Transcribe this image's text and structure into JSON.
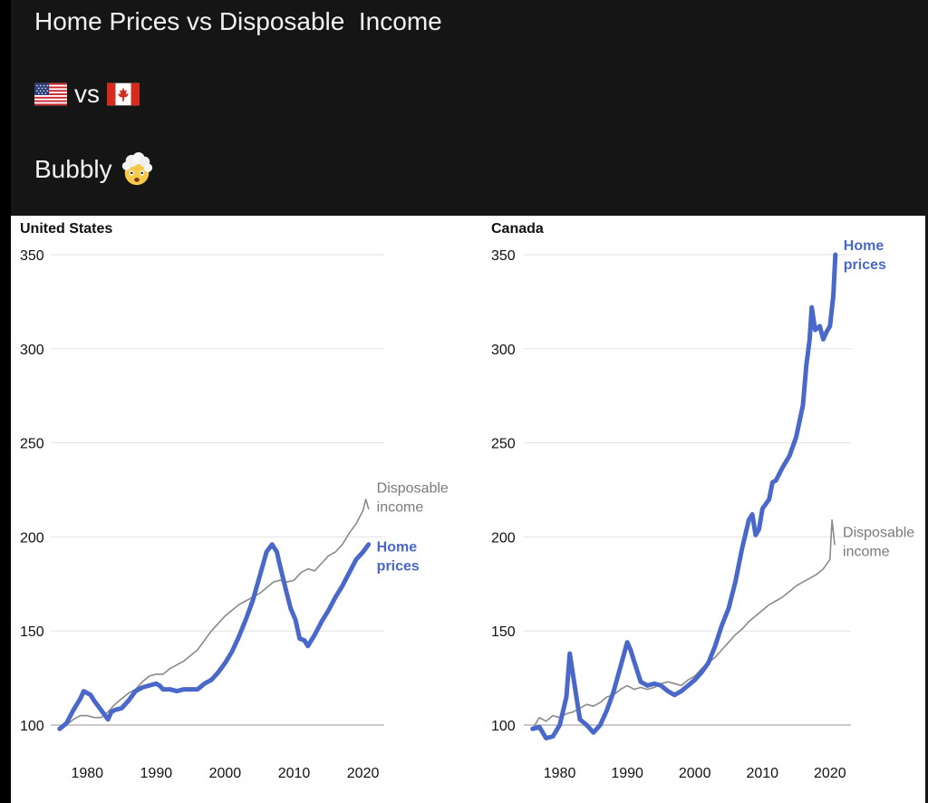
{
  "header": {
    "title": "Home Prices vs Disposable  Income",
    "versus": "vs",
    "caption": "Bubbly"
  },
  "icons": {
    "us_flag": "us-flag-icon",
    "canada_flag": "canada-flag-icon",
    "face": "exploding-head-face-icon"
  },
  "colors": {
    "home_prices": "#4a68c9",
    "disposable_income": "#8a8a8a",
    "header_bg": "#151515",
    "gridline": "#e2e2e2"
  },
  "chart_data": [
    {
      "type": "line",
      "title": "United States",
      "xlabel": "",
      "ylabel": "",
      "xlim": [
        1975.5,
        2021.5
      ],
      "ylim": [
        100,
        350
      ],
      "yticks": [
        100,
        150,
        200,
        250,
        300,
        350
      ],
      "xticks": [
        1980,
        1990,
        2000,
        2010,
        2020
      ],
      "grid": true,
      "series": [
        {
          "name": "Home\nprices",
          "color": "#4a68c9",
          "points": [
            [
              1976,
              98
            ],
            [
              1977,
              101
            ],
            [
              1978,
              108
            ],
            [
              1979,
              114
            ],
            [
              1979.5,
              118
            ],
            [
              1980.5,
              116
            ],
            [
              1981,
              113
            ],
            [
              1982,
              108
            ],
            [
              1983,
              103
            ],
            [
              1983.5,
              107
            ],
            [
              1984,
              108
            ],
            [
              1985,
              109
            ],
            [
              1986,
              113
            ],
            [
              1987,
              118
            ],
            [
              1988,
              120
            ],
            [
              1989,
              121
            ],
            [
              1990,
              122
            ],
            [
              1990.5,
              121
            ],
            [
              1991,
              119
            ],
            [
              1992,
              119
            ],
            [
              1993,
              118
            ],
            [
              1994,
              119
            ],
            [
              1995,
              119
            ],
            [
              1996,
              119
            ],
            [
              1997,
              122
            ],
            [
              1998,
              124
            ],
            [
              1999,
              128
            ],
            [
              2000,
              133
            ],
            [
              2001,
              139
            ],
            [
              2002,
              147
            ],
            [
              2003,
              156
            ],
            [
              2004,
              166
            ],
            [
              2005,
              179
            ],
            [
              2006,
              192
            ],
            [
              2006.8,
              196
            ],
            [
              2007.5,
              192
            ],
            [
              2008,
              184
            ],
            [
              2008.8,
              172
            ],
            [
              2009.5,
              162
            ],
            [
              2010.2,
              156
            ],
            [
              2010.8,
              146
            ],
            [
              2011.5,
              145
            ],
            [
              2012,
              142
            ],
            [
              2012.5,
              145
            ],
            [
              2013,
              148
            ],
            [
              2014,
              155
            ],
            [
              2015,
              161
            ],
            [
              2016,
              168
            ],
            [
              2017,
              174
            ],
            [
              2018,
              181
            ],
            [
              2019,
              188
            ],
            [
              2020,
              192
            ],
            [
              2020.8,
              196
            ]
          ]
        },
        {
          "name": "Disposable\nincome",
          "color": "#8a8a8a",
          "points": [
            [
              1976,
              98
            ],
            [
              1977,
              100
            ],
            [
              1978,
              103
            ],
            [
              1979,
              105
            ],
            [
              1980,
              105
            ],
            [
              1981,
              104
            ],
            [
              1982,
              104
            ],
            [
              1983,
              107
            ],
            [
              1984,
              111
            ],
            [
              1985,
              114
            ],
            [
              1986,
              117
            ],
            [
              1987,
              119
            ],
            [
              1988,
              123
            ],
            [
              1989,
              126
            ],
            [
              1990,
              127
            ],
            [
              1991,
              127
            ],
            [
              1992,
              130
            ],
            [
              1993,
              132
            ],
            [
              1994,
              134
            ],
            [
              1995,
              137
            ],
            [
              1996,
              140
            ],
            [
              1997,
              145
            ],
            [
              1998,
              150
            ],
            [
              1999,
              154
            ],
            [
              2000,
              158
            ],
            [
              2001,
              161
            ],
            [
              2002,
              164
            ],
            [
              2003,
              166
            ],
            [
              2004,
              168
            ],
            [
              2005,
              170
            ],
            [
              2006,
              173
            ],
            [
              2007,
              176
            ],
            [
              2008,
              177
            ],
            [
              2009,
              176
            ],
            [
              2010,
              177
            ],
            [
              2011,
              181
            ],
            [
              2012,
              183
            ],
            [
              2013,
              182
            ],
            [
              2014,
              186
            ],
            [
              2015,
              190
            ],
            [
              2016,
              192
            ],
            [
              2017,
              196
            ],
            [
              2018,
              202
            ],
            [
              2019,
              207
            ],
            [
              2020,
              214
            ],
            [
              2020.4,
              220
            ],
            [
              2020.8,
              215
            ]
          ]
        }
      ]
    },
    {
      "type": "line",
      "title": "Canada",
      "xlabel": "",
      "ylabel": "",
      "xlim": [
        1975.5,
        2021.5
      ],
      "ylim": [
        100,
        350
      ],
      "yticks": [
        100,
        150,
        200,
        250,
        300,
        350
      ],
      "xticks": [
        1980,
        1990,
        2000,
        2010,
        2020
      ],
      "grid": true,
      "series": [
        {
          "name": "Home\nprices",
          "color": "#4a68c9",
          "points": [
            [
              1976,
              98
            ],
            [
              1977,
              99
            ],
            [
              1978,
              93
            ],
            [
              1979,
              94
            ],
            [
              1980,
              100
            ],
            [
              1981,
              115
            ],
            [
              1981.5,
              138
            ],
            [
              1982,
              126
            ],
            [
              1983,
              103
            ],
            [
              1984,
              100
            ],
            [
              1985,
              96
            ],
            [
              1986,
              100
            ],
            [
              1987,
              108
            ],
            [
              1988,
              118
            ],
            [
              1989,
              131
            ],
            [
              1990,
              144
            ],
            [
              1990.5,
              140
            ],
            [
              1991,
              134
            ],
            [
              1992,
              123
            ],
            [
              1993,
              121
            ],
            [
              1994,
              122
            ],
            [
              1995,
              121
            ],
            [
              1996,
              118
            ],
            [
              1997,
              116
            ],
            [
              1998,
              118
            ],
            [
              1999,
              121
            ],
            [
              2000,
              124
            ],
            [
              2001,
              128
            ],
            [
              2002,
              133
            ],
            [
              2003,
              142
            ],
            [
              2004,
              153
            ],
            [
              2005,
              162
            ],
            [
              2006,
              176
            ],
            [
              2007,
              194
            ],
            [
              2008,
              209
            ],
            [
              2008.5,
              212
            ],
            [
              2009,
              201
            ],
            [
              2009.5,
              204
            ],
            [
              2010,
              215
            ],
            [
              2011,
              220
            ],
            [
              2011.5,
              229
            ],
            [
              2012,
              230
            ],
            [
              2013,
              237
            ],
            [
              2014,
              243
            ],
            [
              2015,
              253
            ],
            [
              2016,
              270
            ],
            [
              2016.5,
              291
            ],
            [
              2017,
              305
            ],
            [
              2017.3,
              322
            ],
            [
              2017.8,
              310
            ],
            [
              2018.5,
              312
            ],
            [
              2019,
              305
            ],
            [
              2019.5,
              309
            ],
            [
              2020,
              312
            ],
            [
              2020.5,
              328
            ],
            [
              2020.8,
              350
            ]
          ]
        },
        {
          "name": "Disposable\nincome",
          "color": "#8a8a8a",
          "points": [
            [
              1976,
              98
            ],
            [
              1977,
              104
            ],
            [
              1978,
              102
            ],
            [
              1979,
              105
            ],
            [
              1980,
              104
            ],
            [
              1981,
              106
            ],
            [
              1982,
              107
            ],
            [
              1983,
              109
            ],
            [
              1984,
              111
            ],
            [
              1985,
              110
            ],
            [
              1986,
              112
            ],
            [
              1987,
              115
            ],
            [
              1988,
              116
            ],
            [
              1989,
              119
            ],
            [
              1990,
              121
            ],
            [
              1991,
              119
            ],
            [
              1992,
              120
            ],
            [
              1993,
              119
            ],
            [
              1994,
              120
            ],
            [
              1995,
              122
            ],
            [
              1996,
              123
            ],
            [
              1997,
              122
            ],
            [
              1998,
              121
            ],
            [
              1999,
              124
            ],
            [
              2000,
              126
            ],
            [
              2001,
              130
            ],
            [
              2002,
              133
            ],
            [
              2003,
              136
            ],
            [
              2004,
              140
            ],
            [
              2005,
              144
            ],
            [
              2006,
              148
            ],
            [
              2007,
              151
            ],
            [
              2008,
              155
            ],
            [
              2009,
              158
            ],
            [
              2010,
              161
            ],
            [
              2011,
              164
            ],
            [
              2012,
              166
            ],
            [
              2013,
              168
            ],
            [
              2014,
              171
            ],
            [
              2015,
              174
            ],
            [
              2016,
              176
            ],
            [
              2017,
              178
            ],
            [
              2018,
              180
            ],
            [
              2019,
              183
            ],
            [
              2020,
              188
            ],
            [
              2020.3,
              209
            ],
            [
              2020.7,
              196
            ]
          ]
        }
      ]
    }
  ]
}
